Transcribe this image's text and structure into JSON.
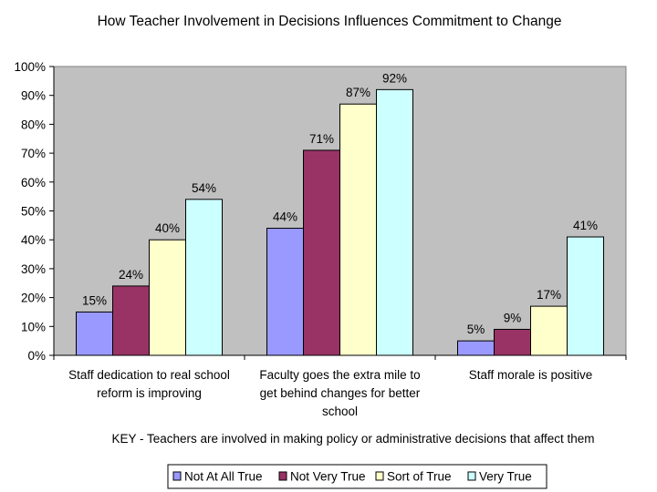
{
  "chart_data": {
    "type": "bar",
    "title": "How Teacher Involvement in Decisions Influences Commitment to Change",
    "categories": [
      [
        "Staff dedication to real school",
        "reform is improving"
      ],
      [
        "Faculty goes the extra mile to",
        "get behind changes for better",
        "school"
      ],
      [
        "Staff morale is positive"
      ]
    ],
    "series": [
      {
        "name": "Not At All True",
        "color": "#9999ff",
        "values": [
          15,
          44,
          5
        ]
      },
      {
        "name": "Not Very True",
        "color": "#993366",
        "values": [
          24,
          71,
          9
        ]
      },
      {
        "name": "Sort of True",
        "color": "#ffffcc",
        "values": [
          40,
          87,
          17
        ]
      },
      {
        "name": "Very True",
        "color": "#ccffff",
        "values": [
          54,
          92,
          41
        ]
      }
    ],
    "value_suffix": "%",
    "ylim": [
      0,
      100
    ],
    "yticks": [
      "0%",
      "10%",
      "20%",
      "30%",
      "40%",
      "50%",
      "60%",
      "70%",
      "80%",
      "90%",
      "100%"
    ],
    "plot_background": "#c0c0c0",
    "grid": false,
    "key_note": "KEY - Teachers are involved in making policy or administrative decisions that affect them",
    "legend_position": "bottom"
  }
}
